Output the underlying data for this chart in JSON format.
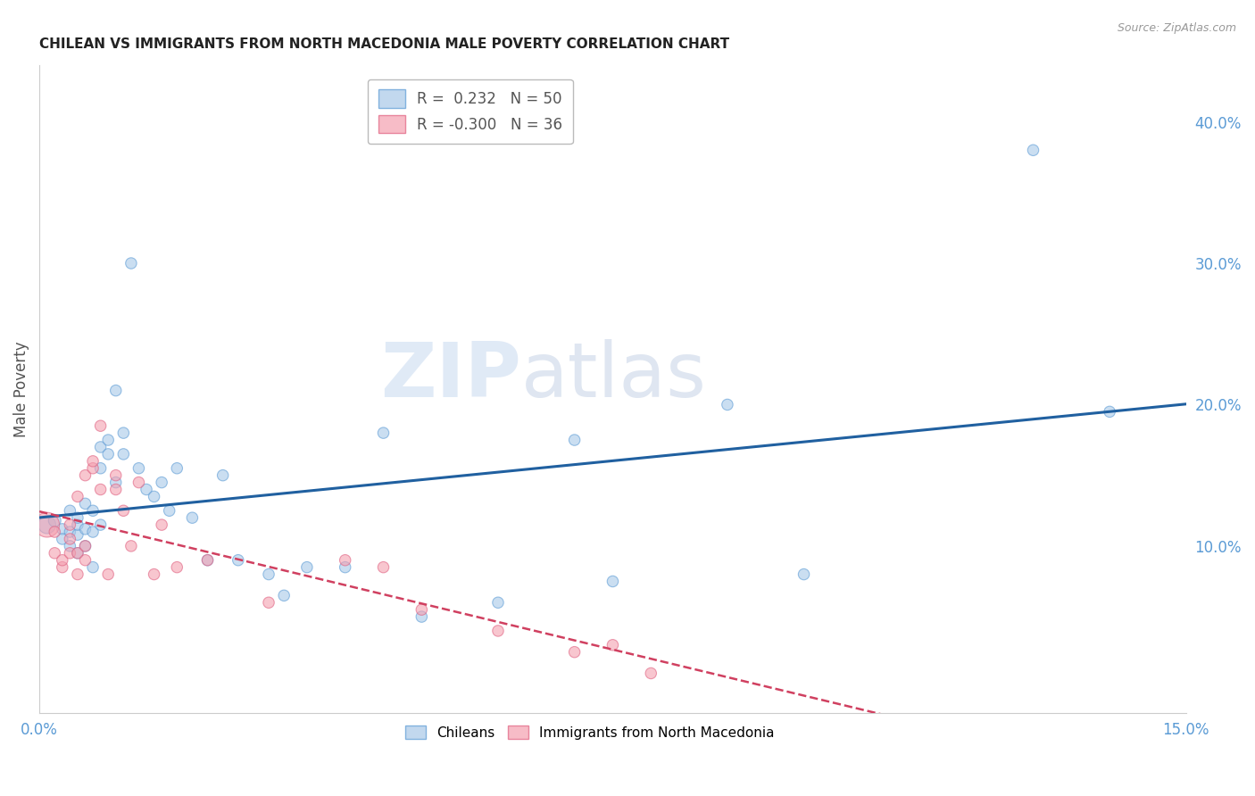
{
  "title": "CHILEAN VS IMMIGRANTS FROM NORTH MACEDONIA MALE POVERTY CORRELATION CHART",
  "source": "Source: ZipAtlas.com",
  "ylabel": "Male Poverty",
  "right_yticks": [
    0.1,
    0.2,
    0.3,
    0.4
  ],
  "right_ytick_labels": [
    "10.0%",
    "20.0%",
    "30.0%",
    "40.0%"
  ],
  "xmin": 0.0,
  "xmax": 0.15,
  "ymin": -0.018,
  "ymax": 0.44,
  "watermark_zip": "ZIP",
  "watermark_atlas": "atlas",
  "legend_blue_r": "R =  0.232",
  "legend_blue_n": "N = 50",
  "legend_pink_r": "R = -0.300",
  "legend_pink_n": "N = 36",
  "blue_scatter_color": "#a8c8e8",
  "blue_scatter_edge": "#5b9bd5",
  "pink_scatter_color": "#f4a0b0",
  "pink_scatter_edge": "#e06080",
  "blue_line_color": "#2060a0",
  "pink_line_color": "#d04060",
  "background_color": "#ffffff",
  "grid_color": "#d0d0d0",
  "title_fontsize": 11,
  "axis_label_color": "#5b9bd5",
  "ylabel_color": "#555555",
  "chileans_x": [
    0.001,
    0.002,
    0.003,
    0.003,
    0.004,
    0.004,
    0.004,
    0.005,
    0.005,
    0.005,
    0.005,
    0.006,
    0.006,
    0.006,
    0.007,
    0.007,
    0.007,
    0.008,
    0.008,
    0.008,
    0.009,
    0.009,
    0.01,
    0.01,
    0.011,
    0.011,
    0.012,
    0.013,
    0.014,
    0.015,
    0.016,
    0.017,
    0.018,
    0.02,
    0.022,
    0.024,
    0.026,
    0.03,
    0.032,
    0.035,
    0.04,
    0.045,
    0.05,
    0.06,
    0.07,
    0.075,
    0.09,
    0.1,
    0.13,
    0.14
  ],
  "chileans_y": [
    0.115,
    0.118,
    0.112,
    0.105,
    0.1,
    0.11,
    0.125,
    0.108,
    0.115,
    0.12,
    0.095,
    0.1,
    0.13,
    0.112,
    0.085,
    0.11,
    0.125,
    0.115,
    0.155,
    0.17,
    0.175,
    0.165,
    0.21,
    0.145,
    0.18,
    0.165,
    0.3,
    0.155,
    0.14,
    0.135,
    0.145,
    0.125,
    0.155,
    0.12,
    0.09,
    0.15,
    0.09,
    0.08,
    0.065,
    0.085,
    0.085,
    0.18,
    0.05,
    0.06,
    0.175,
    0.075,
    0.2,
    0.08,
    0.38,
    0.195
  ],
  "chileans_size": [
    200,
    100,
    80,
    80,
    80,
    80,
    80,
    80,
    80,
    80,
    80,
    80,
    80,
    80,
    80,
    80,
    80,
    80,
    80,
    80,
    80,
    80,
    80,
    80,
    80,
    80,
    80,
    80,
    80,
    80,
    80,
    80,
    80,
    80,
    80,
    80,
    80,
    80,
    80,
    80,
    80,
    80,
    80,
    80,
    80,
    80,
    80,
    80,
    80,
    80
  ],
  "macedonia_x": [
    0.001,
    0.002,
    0.002,
    0.003,
    0.003,
    0.004,
    0.004,
    0.004,
    0.005,
    0.005,
    0.005,
    0.006,
    0.006,
    0.006,
    0.007,
    0.007,
    0.008,
    0.008,
    0.009,
    0.01,
    0.01,
    0.011,
    0.012,
    0.013,
    0.015,
    0.016,
    0.018,
    0.022,
    0.03,
    0.04,
    0.045,
    0.05,
    0.06,
    0.07,
    0.075,
    0.08
  ],
  "macedonia_y": [
    0.115,
    0.095,
    0.11,
    0.085,
    0.09,
    0.115,
    0.105,
    0.095,
    0.08,
    0.135,
    0.095,
    0.1,
    0.15,
    0.09,
    0.155,
    0.16,
    0.14,
    0.185,
    0.08,
    0.15,
    0.14,
    0.125,
    0.1,
    0.145,
    0.08,
    0.115,
    0.085,
    0.09,
    0.06,
    0.09,
    0.085,
    0.055,
    0.04,
    0.025,
    0.03,
    0.01
  ],
  "macedonia_size": [
    400,
    80,
    80,
    80,
    80,
    80,
    80,
    80,
    80,
    80,
    80,
    80,
    80,
    80,
    80,
    80,
    80,
    80,
    80,
    80,
    80,
    80,
    80,
    80,
    80,
    80,
    80,
    80,
    80,
    80,
    80,
    80,
    80,
    80,
    80,
    80
  ]
}
